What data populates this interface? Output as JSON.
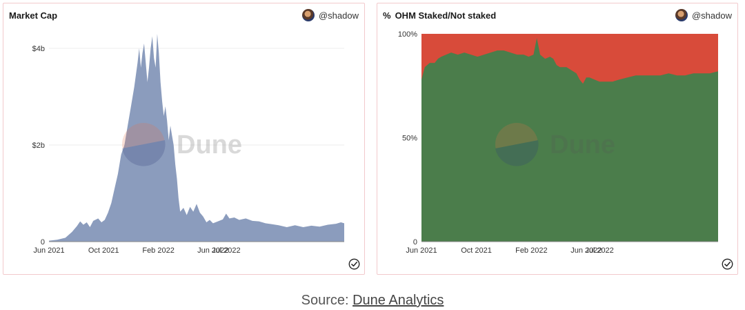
{
  "left_panel": {
    "title": "Market Cap",
    "author": "@shadow"
  },
  "right_panel": {
    "title_prefix": "%",
    "title": "OHM Staked/Not staked",
    "author": "@shadow"
  },
  "watermark": "Dune",
  "source": {
    "prefix": "Source: ",
    "link_text": "Dune Analytics"
  },
  "colors": {
    "market_cap_fill": "#8b9cbd",
    "staked": "#4b7d4b",
    "not_staked": "#d84b3a",
    "panel_border": "#f2c9cc"
  },
  "chart_data": [
    {
      "type": "area",
      "title": "Market Cap",
      "x_ticks": [
        "Jun 2021",
        "Oct 2021",
        "Feb 2022",
        "Jun 2022",
        "Jul 2022"
      ],
      "y_ticks": [
        "0",
        "$2b",
        "$4b"
      ],
      "ylim": [
        0,
        4300000000
      ],
      "series": [
        {
          "values_billion": [
            [
              0.0,
              0.02
            ],
            [
              0.05,
              0.04
            ],
            [
              0.1,
              0.08
            ],
            [
              0.14,
              0.2
            ],
            [
              0.17,
              0.32
            ],
            [
              0.19,
              0.42
            ],
            [
              0.21,
              0.35
            ],
            [
              0.23,
              0.4
            ],
            [
              0.25,
              0.3
            ],
            [
              0.27,
              0.43
            ],
            [
              0.3,
              0.48
            ],
            [
              0.32,
              0.4
            ],
            [
              0.34,
              0.45
            ],
            [
              0.36,
              0.6
            ],
            [
              0.38,
              0.8
            ],
            [
              0.4,
              1.1
            ],
            [
              0.42,
              1.4
            ],
            [
              0.44,
              1.8
            ],
            [
              0.46,
              2.0
            ],
            [
              0.48,
              2.4
            ],
            [
              0.5,
              2.8
            ],
            [
              0.52,
              3.2
            ],
            [
              0.54,
              3.7
            ],
            [
              0.55,
              4.0
            ],
            [
              0.56,
              3.6
            ],
            [
              0.57,
              3.9
            ],
            [
              0.58,
              4.1
            ],
            [
              0.59,
              3.7
            ],
            [
              0.6,
              3.3
            ],
            [
              0.61,
              3.6
            ],
            [
              0.62,
              4.0
            ],
            [
              0.63,
              4.25
            ],
            [
              0.64,
              3.8
            ],
            [
              0.65,
              3.6
            ],
            [
              0.66,
              4.3
            ],
            [
              0.67,
              3.9
            ],
            [
              0.68,
              3.3
            ],
            [
              0.69,
              2.9
            ],
            [
              0.7,
              2.6
            ],
            [
              0.71,
              2.8
            ],
            [
              0.72,
              2.5
            ],
            [
              0.73,
              2.1
            ],
            [
              0.74,
              2.4
            ],
            [
              0.75,
              2.2
            ],
            [
              0.76,
              2.0
            ],
            [
              0.77,
              1.6
            ],
            [
              0.78,
              1.3
            ],
            [
              0.79,
              0.9
            ],
            [
              0.8,
              0.62
            ],
            [
              0.82,
              0.7
            ],
            [
              0.84,
              0.55
            ],
            [
              0.86,
              0.72
            ],
            [
              0.88,
              0.62
            ],
            [
              0.9,
              0.78
            ],
            [
              0.92,
              0.6
            ],
            [
              0.94,
              0.52
            ],
            [
              0.96,
              0.4
            ],
            [
              0.98,
              0.45
            ],
            [
              1.0,
              0.38
            ],
            [
              1.03,
              0.42
            ],
            [
              1.06,
              0.46
            ],
            [
              1.08,
              0.58
            ],
            [
              1.1,
              0.48
            ],
            [
              1.13,
              0.5
            ],
            [
              1.16,
              0.45
            ],
            [
              1.2,
              0.48
            ],
            [
              1.24,
              0.43
            ],
            [
              1.28,
              0.42
            ],
            [
              1.32,
              0.38
            ],
            [
              1.36,
              0.36
            ],
            [
              1.4,
              0.34
            ],
            [
              1.45,
              0.3
            ],
            [
              1.5,
              0.34
            ],
            [
              1.55,
              0.3
            ],
            [
              1.6,
              0.33
            ],
            [
              1.65,
              0.31
            ],
            [
              1.7,
              0.35
            ],
            [
              1.75,
              0.37
            ],
            [
              1.78,
              0.4
            ],
            [
              1.8,
              0.38
            ]
          ]
        }
      ],
      "grid": true
    },
    {
      "type": "area",
      "title": "OHM Staked/Not staked",
      "x_ticks": [
        "Jun 2021",
        "Oct 2021",
        "Feb 2022",
        "Jun 2022",
        "Jul 2022"
      ],
      "y_ticks": [
        "0",
        "50%",
        "100%"
      ],
      "ylim": [
        0,
        100
      ],
      "stacked": true,
      "series": [
        {
          "staked_percent": [
            [
              0.0,
              78
            ],
            [
              0.02,
              84
            ],
            [
              0.05,
              86
            ],
            [
              0.08,
              86
            ],
            [
              0.1,
              88
            ],
            [
              0.12,
              89
            ],
            [
              0.15,
              90
            ],
            [
              0.18,
              91
            ],
            [
              0.22,
              90
            ],
            [
              0.26,
              91
            ],
            [
              0.3,
              90
            ],
            [
              0.34,
              89
            ],
            [
              0.38,
              90
            ],
            [
              0.42,
              91
            ],
            [
              0.46,
              92
            ],
            [
              0.5,
              92
            ],
            [
              0.54,
              91
            ],
            [
              0.58,
              90
            ],
            [
              0.62,
              90
            ],
            [
              0.65,
              89
            ],
            [
              0.68,
              90
            ],
            [
              0.7,
              98
            ],
            [
              0.72,
              90
            ],
            [
              0.75,
              88
            ],
            [
              0.78,
              89
            ],
            [
              0.8,
              88
            ],
            [
              0.82,
              85
            ],
            [
              0.84,
              84
            ],
            [
              0.86,
              84
            ],
            [
              0.88,
              84
            ],
            [
              0.9,
              83
            ],
            [
              0.92,
              82
            ],
            [
              0.94,
              81
            ],
            [
              0.96,
              78
            ],
            [
              0.98,
              76
            ],
            [
              1.0,
              79
            ],
            [
              1.02,
              79
            ],
            [
              1.05,
              78
            ],
            [
              1.08,
              77
            ],
            [
              1.12,
              77
            ],
            [
              1.16,
              77
            ],
            [
              1.2,
              78
            ],
            [
              1.25,
              79
            ],
            [
              1.3,
              80
            ],
            [
              1.35,
              80
            ],
            [
              1.4,
              80
            ],
            [
              1.45,
              80
            ],
            [
              1.5,
              81
            ],
            [
              1.55,
              80
            ],
            [
              1.6,
              80
            ],
            [
              1.65,
              81
            ],
            [
              1.7,
              81
            ],
            [
              1.75,
              81
            ],
            [
              1.8,
              82
            ]
          ]
        }
      ],
      "grid": false
    }
  ]
}
